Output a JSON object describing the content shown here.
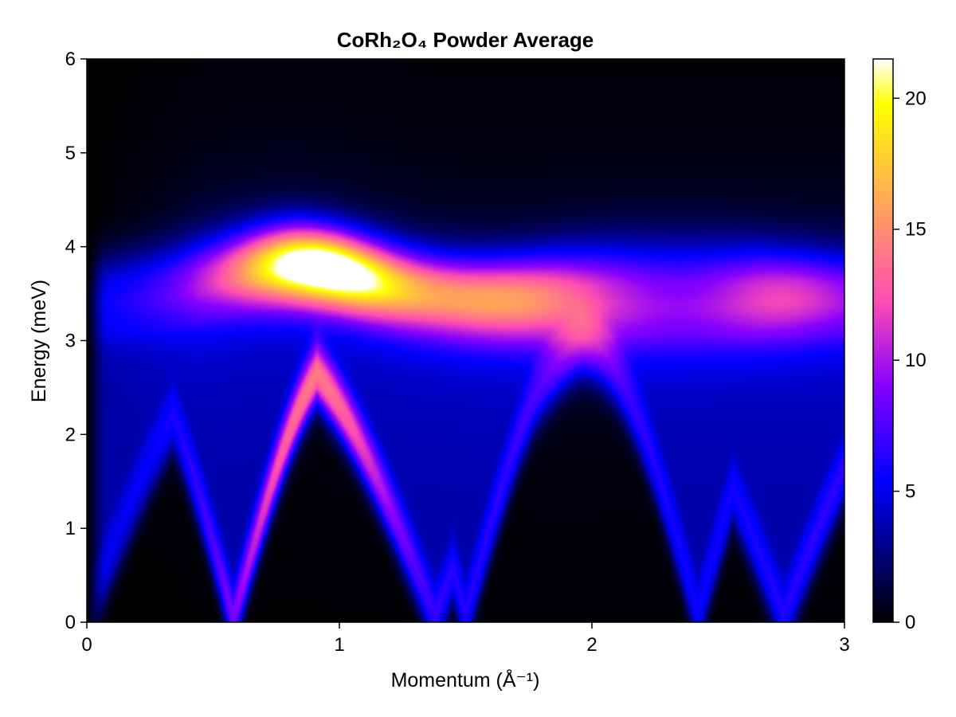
{
  "chart_data": {
    "type": "heatmap",
    "title": "CoRh₂O₄ Powder Average",
    "xlabel": "Momentum (Å⁻¹)",
    "ylabel": "Energy (meV)",
    "xlim": [
      0,
      3
    ],
    "ylim": [
      0,
      6
    ],
    "x_ticks": [
      0,
      1,
      2,
      3
    ],
    "y_ticks": [
      0,
      1,
      2,
      3,
      4,
      5,
      6
    ],
    "colorbar": {
      "colormap": "gnuplot2",
      "range": [
        0,
        21.5
      ],
      "ticks": [
        0,
        5,
        10,
        15,
        20
      ]
    },
    "features": {
      "lower_band_arches": [
        {
          "q_start": 0.0,
          "q_peak": 0.68,
          "q_end": 1.35,
          "peak_energy": 3.0
        },
        {
          "q_start": 1.5,
          "q_peak": 1.95,
          "q_end": 2.45,
          "peak_energy": 2.95
        },
        {
          "q_start": 2.6,
          "q_peak": 3.0,
          "q_end": 3.0,
          "peak_energy": 2.7
        }
      ],
      "upper_band": {
        "energy_center": 3.5,
        "q_range": [
          0.5,
          3.0
        ]
      },
      "intensity_hotspots": [
        {
          "q": 0.95,
          "energy": 3.5,
          "intensity": 21.5
        },
        {
          "q": 1.6,
          "energy": 3.45,
          "intensity": 14
        },
        {
          "q": 2.75,
          "energy": 3.4,
          "intensity": 9
        }
      ]
    }
  }
}
